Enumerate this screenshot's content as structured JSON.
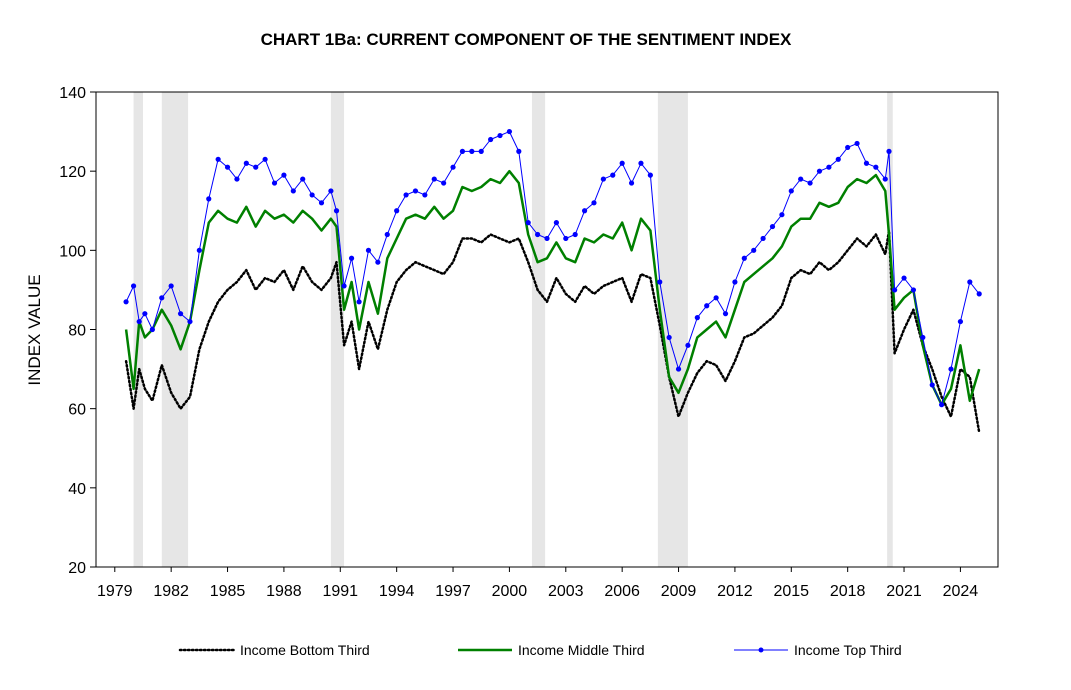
{
  "chart_data": {
    "type": "line",
    "title": "CHART 1Ba: CURRENT COMPONENT OF THE SENTIMENT INDEX",
    "xlabel": "",
    "ylabel": "INDEX VALUE",
    "xlim": [
      1978.0,
      2026.0
    ],
    "ylim": [
      20,
      140
    ],
    "yticks": [
      20,
      40,
      60,
      80,
      100,
      120,
      140
    ],
    "xticks": [
      1979,
      1982,
      1985,
      1988,
      1991,
      1994,
      1997,
      2000,
      2003,
      2006,
      2009,
      2012,
      2015,
      2018,
      2021,
      2024
    ],
    "recessions": [
      [
        1980.0,
        1980.5
      ],
      [
        1981.5,
        1982.9
      ],
      [
        1990.5,
        1991.2
      ],
      [
        2001.2,
        2001.9
      ],
      [
        2007.9,
        2009.5
      ],
      [
        2020.1,
        2020.4
      ]
    ],
    "legend": [
      "Income Bottom Third",
      "Income Middle Third",
      "Income Top Third"
    ],
    "colors": {
      "bottom": "#000000",
      "middle": "#008000",
      "top": "#0000ff",
      "recession": "#e6e6e6"
    },
    "series": [
      {
        "name": "Income Bottom Third",
        "style": "dotted",
        "x": [
          1979.6,
          1980.0,
          1980.3,
          1980.6,
          1981.0,
          1981.5,
          1982.0,
          1982.5,
          1983.0,
          1983.5,
          1984.0,
          1984.5,
          1985.0,
          1985.5,
          1986.0,
          1986.5,
          1987.0,
          1987.5,
          1988.0,
          1988.5,
          1989.0,
          1989.5,
          1990.0,
          1990.5,
          1990.8,
          1991.2,
          1991.6,
          1992.0,
          1992.5,
          1993.0,
          1993.5,
          1994.0,
          1994.5,
          1995.0,
          1995.5,
          1996.0,
          1996.5,
          1997.0,
          1997.5,
          1998.0,
          1998.5,
          1999.0,
          1999.5,
          2000.0,
          2000.5,
          2001.0,
          2001.5,
          2002.0,
          2002.5,
          2003.0,
          2003.5,
          2004.0,
          2004.5,
          2005.0,
          2005.5,
          2006.0,
          2006.5,
          2007.0,
          2007.5,
          2008.0,
          2008.5,
          2009.0,
          2009.5,
          2010.0,
          2010.5,
          2011.0,
          2011.5,
          2012.0,
          2012.5,
          2013.0,
          2013.5,
          2014.0,
          2014.5,
          2015.0,
          2015.5,
          2016.0,
          2016.5,
          2017.0,
          2017.5,
          2018.0,
          2018.5,
          2019.0,
          2019.5,
          2020.0,
          2020.2,
          2020.5,
          2021.0,
          2021.5,
          2022.0,
          2022.5,
          2023.0,
          2023.5,
          2024.0,
          2024.5,
          2025.0
        ],
        "values": [
          72,
          60,
          70,
          65,
          62,
          71,
          64,
          60,
          63,
          75,
          82,
          87,
          90,
          92,
          95,
          90,
          93,
          92,
          95,
          90,
          96,
          92,
          90,
          93,
          97,
          76,
          82,
          70,
          82,
          75,
          85,
          92,
          95,
          97,
          96,
          95,
          94,
          97,
          103,
          103,
          102,
          104,
          103,
          102,
          103,
          97,
          90,
          87,
          93,
          89,
          87,
          91,
          89,
          91,
          92,
          93,
          87,
          94,
          93,
          81,
          68,
          58,
          64,
          69,
          72,
          71,
          67,
          72,
          78,
          79,
          81,
          83,
          86,
          93,
          95,
          94,
          97,
          95,
          97,
          100,
          103,
          101,
          104,
          99,
          105,
          74,
          80,
          85,
          76,
          70,
          63,
          58,
          70,
          68,
          54
        ]
      },
      {
        "name": "Income Middle Third",
        "style": "solid",
        "x": [
          1979.6,
          1980.0,
          1980.3,
          1980.6,
          1981.0,
          1981.5,
          1982.0,
          1982.5,
          1983.0,
          1983.5,
          1984.0,
          1984.5,
          1985.0,
          1985.5,
          1986.0,
          1986.5,
          1987.0,
          1987.5,
          1988.0,
          1988.5,
          1989.0,
          1989.5,
          1990.0,
          1990.5,
          1990.8,
          1991.2,
          1991.6,
          1992.0,
          1992.5,
          1993.0,
          1993.5,
          1994.0,
          1994.5,
          1995.0,
          1995.5,
          1996.0,
          1996.5,
          1997.0,
          1997.5,
          1998.0,
          1998.5,
          1999.0,
          1999.5,
          2000.0,
          2000.5,
          2001.0,
          2001.5,
          2002.0,
          2002.5,
          2003.0,
          2003.5,
          2004.0,
          2004.5,
          2005.0,
          2005.5,
          2006.0,
          2006.5,
          2007.0,
          2007.5,
          2008.0,
          2008.5,
          2009.0,
          2009.5,
          2010.0,
          2010.5,
          2011.0,
          2011.5,
          2012.0,
          2012.5,
          2013.0,
          2013.5,
          2014.0,
          2014.5,
          2015.0,
          2015.5,
          2016.0,
          2016.5,
          2017.0,
          2017.5,
          2018.0,
          2018.5,
          2019.0,
          2019.5,
          2020.0,
          2020.2,
          2020.5,
          2021.0,
          2021.5,
          2022.0,
          2022.5,
          2023.0,
          2023.5,
          2024.0,
          2024.5,
          2025.0
        ],
        "values": [
          80,
          65,
          82,
          78,
          80,
          85,
          81,
          75,
          82,
          95,
          107,
          110,
          108,
          107,
          111,
          106,
          110,
          108,
          109,
          107,
          110,
          108,
          105,
          108,
          106,
          85,
          92,
          80,
          92,
          84,
          98,
          103,
          108,
          109,
          108,
          111,
          108,
          110,
          116,
          115,
          116,
          118,
          117,
          120,
          117,
          104,
          97,
          98,
          102,
          98,
          97,
          103,
          102,
          104,
          103,
          107,
          100,
          108,
          105,
          85,
          68,
          64,
          70,
          78,
          80,
          82,
          78,
          85,
          92,
          94,
          96,
          98,
          101,
          106,
          108,
          108,
          112,
          111,
          112,
          116,
          118,
          117,
          119,
          115,
          104,
          85,
          88,
          90,
          76,
          66,
          61,
          65,
          76,
          62,
          70
        ]
      },
      {
        "name": "Income Top Third",
        "style": "solid-dots",
        "x": [
          1979.6,
          1980.0,
          1980.3,
          1980.6,
          1981.0,
          1981.5,
          1982.0,
          1982.5,
          1983.0,
          1983.5,
          1984.0,
          1984.5,
          1985.0,
          1985.5,
          1986.0,
          1986.5,
          1987.0,
          1987.5,
          1988.0,
          1988.5,
          1989.0,
          1989.5,
          1990.0,
          1990.5,
          1990.8,
          1991.2,
          1991.6,
          1992.0,
          1992.5,
          1993.0,
          1993.5,
          1994.0,
          1994.5,
          1995.0,
          1995.5,
          1996.0,
          1996.5,
          1997.0,
          1997.5,
          1998.0,
          1998.5,
          1999.0,
          1999.5,
          2000.0,
          2000.5,
          2001.0,
          2001.5,
          2002.0,
          2002.5,
          2003.0,
          2003.5,
          2004.0,
          2004.5,
          2005.0,
          2005.5,
          2006.0,
          2006.5,
          2007.0,
          2007.5,
          2008.0,
          2008.5,
          2009.0,
          2009.5,
          2010.0,
          2010.5,
          2011.0,
          2011.5,
          2012.0,
          2012.5,
          2013.0,
          2013.5,
          2014.0,
          2014.5,
          2015.0,
          2015.5,
          2016.0,
          2016.5,
          2017.0,
          2017.5,
          2018.0,
          2018.5,
          2019.0,
          2019.5,
          2020.0,
          2020.2,
          2020.5,
          2021.0,
          2021.5,
          2022.0,
          2022.5,
          2023.0,
          2023.5,
          2024.0,
          2024.5,
          2025.0
        ],
        "values": [
          87,
          91,
          82,
          84,
          80,
          88,
          91,
          84,
          82,
          100,
          113,
          123,
          121,
          118,
          122,
          121,
          123,
          117,
          119,
          115,
          118,
          114,
          112,
          115,
          110,
          91,
          98,
          87,
          100,
          97,
          104,
          110,
          114,
          115,
          114,
          118,
          117,
          121,
          125,
          125,
          125,
          128,
          129,
          130,
          125,
          107,
          104,
          103,
          107,
          103,
          104,
          110,
          112,
          118,
          119,
          122,
          117,
          122,
          119,
          92,
          78,
          70,
          76,
          83,
          86,
          88,
          84,
          92,
          98,
          100,
          103,
          106,
          109,
          115,
          118,
          117,
          120,
          121,
          123,
          126,
          127,
          122,
          121,
          118,
          125,
          90,
          93,
          90,
          78,
          66,
          61,
          70,
          82,
          92,
          89
        ]
      }
    ]
  }
}
